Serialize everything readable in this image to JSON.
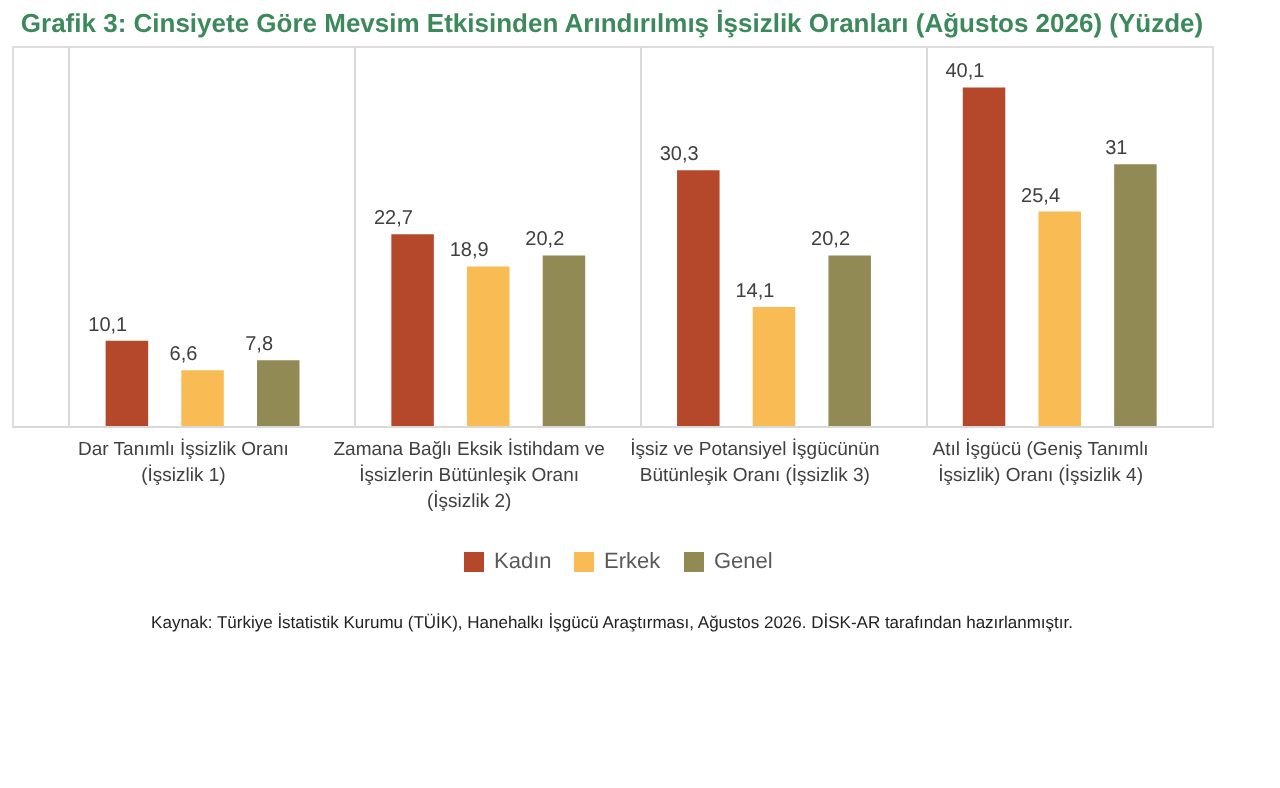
{
  "chart_data": {
    "type": "bar",
    "title": "Grafik 3: Cinsiyete Göre Mevsim Etkisinden Arındırılmış İşsizlik Oranları (Ağustos 2026) (Yüzde)",
    "categories": [
      "Dar Tanımlı İşsizlik Oranı (İşsizlik 1)",
      "Zamana Bağlı Eksik İstihdam ve İşsizlerin Bütünleşik Oranı (İşsizlik 2)",
      "İşsiz ve Potansiyel İşgücünün Bütünleşik Oranı (İşsizlik 3)",
      "Atıl İşgücü (Geniş Tanımlı İşsizlik) Oranı (İşsizlik 4)"
    ],
    "series": [
      {
        "name": "Kadın",
        "color": "#b5482a",
        "values": [
          10.1,
          22.7,
          30.3,
          40.1
        ],
        "value_labels": [
          "10,1",
          "22,7",
          "30,3",
          "40,1"
        ]
      },
      {
        "name": "Erkek",
        "color": "#f9bc55",
        "values": [
          6.6,
          18.9,
          14.1,
          25.4
        ],
        "value_labels": [
          "6,6",
          "18,9",
          "14,1",
          "25,4"
        ]
      },
      {
        "name": "Genel",
        "color": "#928a55",
        "values": [
          7.8,
          20.2,
          20.2,
          31
        ],
        "value_labels": [
          "7,8",
          "20,2",
          "20,2",
          "31"
        ]
      }
    ],
    "grid": "x",
    "legend": "bottom",
    "annotations": [
      "Kaynak: Türkiye İstatistik Kurumu (TÜİK), Hanehalkı İşgücü Araştırması, Ağustos 2026. DİSK-AR tarafından hazırlanmıştır."
    ]
  }
}
